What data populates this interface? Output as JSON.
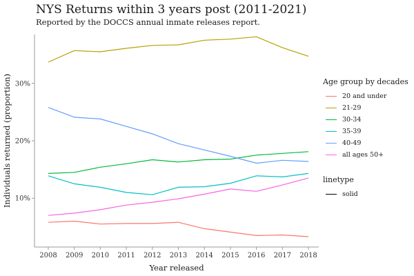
{
  "chart_data": {
    "type": "line",
    "title": "NYS Returns within 3 years post (2011-2021)",
    "subtitle": "Reported by the DOCCS annual inmate releases report.",
    "xlabel": "Year released",
    "ylabel": "Individuals returned (proportion)",
    "x": [
      2008,
      2009,
      2010,
      2011,
      2012,
      2013,
      2014,
      2015,
      2016,
      2017,
      2018
    ],
    "xlim": [
      2008,
      2018
    ],
    "ylim": [
      0.015,
      0.385
    ],
    "yticks": [
      0.1,
      0.2,
      0.3
    ],
    "ytick_labels": [
      "10%",
      "20%",
      "30%"
    ],
    "grid": false,
    "legend_title": "Age group by decades",
    "legend_position": "right",
    "series": [
      {
        "name": "20 and under",
        "color": "#F8766D",
        "values": [
          0.058,
          0.06,
          0.055,
          0.056,
          0.056,
          0.058,
          0.047,
          0.041,
          0.035,
          0.036,
          0.033
        ]
      },
      {
        "name": "21-29",
        "color": "#B79F00",
        "values": [
          0.337,
          0.357,
          0.355,
          0.361,
          0.366,
          0.367,
          0.375,
          0.377,
          0.381,
          0.362,
          0.347
        ]
      },
      {
        "name": "30-34",
        "color": "#00BA38",
        "values": [
          0.143,
          0.145,
          0.154,
          0.16,
          0.167,
          0.163,
          0.167,
          0.168,
          0.175,
          0.178,
          0.181
        ]
      },
      {
        "name": "35-39",
        "color": "#00BFC4",
        "values": [
          0.139,
          0.125,
          0.119,
          0.11,
          0.106,
          0.119,
          0.12,
          0.126,
          0.139,
          0.137,
          0.143
        ]
      },
      {
        "name": "40-49",
        "color": "#619CFF",
        "values": [
          0.258,
          0.241,
          0.238,
          0.225,
          0.212,
          0.195,
          0.184,
          0.173,
          0.161,
          0.166,
          0.164
        ]
      },
      {
        "name": "all ages 50+",
        "color": "#F564E3",
        "values": [
          0.07,
          0.074,
          0.08,
          0.088,
          0.093,
          0.099,
          0.107,
          0.116,
          0.112,
          0.123,
          0.135
        ]
      }
    ],
    "linetype_legend": {
      "title": "linetype",
      "items": [
        "solid"
      ]
    }
  }
}
